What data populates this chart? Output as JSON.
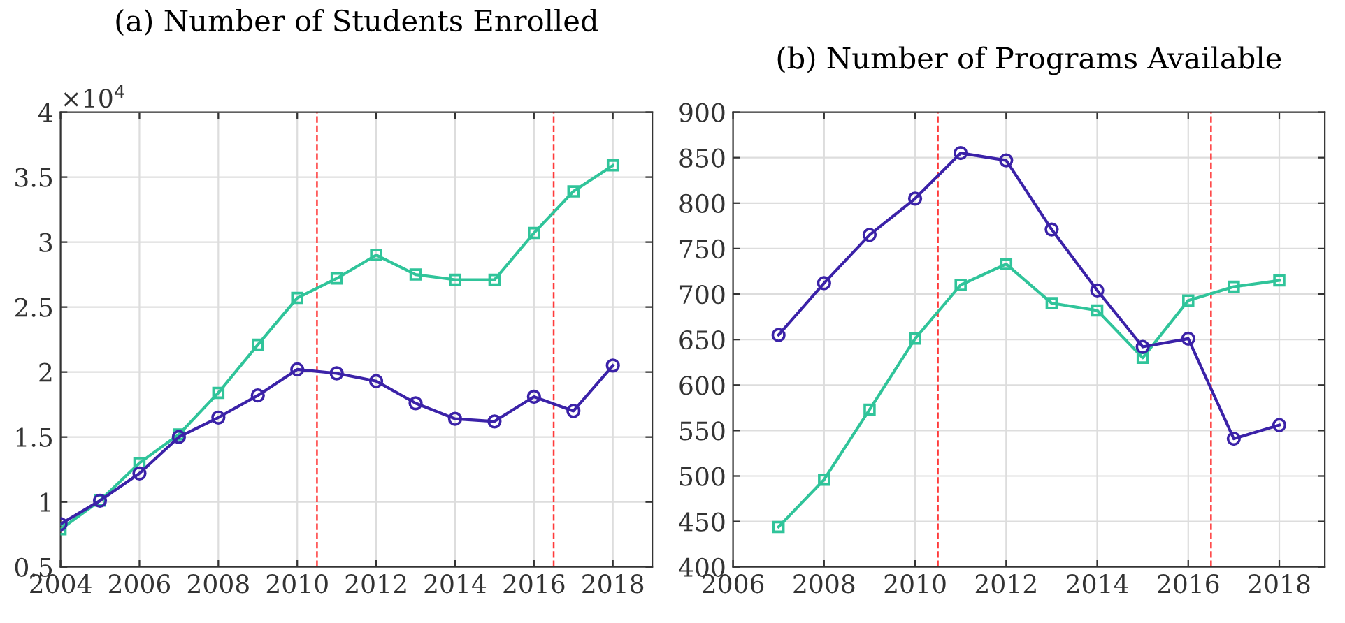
{
  "chart_data": [
    {
      "type": "line",
      "title": "(a) Number of Students Enrolled",
      "annotations": [
        "×10$^{4}$"
      ],
      "x": [
        2004,
        2005,
        2006,
        2007,
        2008,
        2009,
        2010,
        2011,
        2012,
        2013,
        2014,
        2015,
        2016,
        2017,
        2018
      ],
      "series": [
        {
          "color": "#3b22a8",
          "marker": "circle",
          "values": [
            0.83,
            1.01,
            1.22,
            1.5,
            1.65,
            1.82,
            2.02,
            1.99,
            1.93,
            1.76,
            1.64,
            1.62,
            1.81,
            1.7,
            2.05
          ]
        },
        {
          "color": "#30c49a",
          "marker": "square",
          "values": [
            0.79,
            1.01,
            1.3,
            1.52,
            1.84,
            2.21,
            2.57,
            2.72,
            2.9,
            2.75,
            2.71,
            2.71,
            3.07,
            3.39,
            3.59
          ]
        }
      ],
      "xlim": [
        2004,
        2019
      ],
      "xticks": [
        2004,
        2006,
        2008,
        2010,
        2012,
        2014,
        2016,
        2018
      ],
      "ylim": [
        0.5,
        4
      ],
      "yticks": [
        0.5,
        1,
        1.5,
        2,
        2.5,
        3,
        3.5,
        4
      ],
      "ref_lines": [
        {
          "axis": "x",
          "value": 2010.5,
          "color": "#ff3b3b",
          "line_style": "dashed"
        },
        {
          "axis": "x",
          "value": 2016.5,
          "color": "#ff3b3b",
          "line_style": "dashed"
        }
      ],
      "grid": true,
      "legend": false
    },
    {
      "type": "line",
      "title": "(b) Number of Programs Available",
      "x": [
        2007,
        2008,
        2009,
        2010,
        2011,
        2012,
        2013,
        2014,
        2015,
        2016,
        2017,
        2018
      ],
      "series": [
        {
          "color": "#3b22a8",
          "marker": "circle",
          "values": [
            655,
            712,
            765,
            805,
            855,
            847,
            771,
            704,
            642,
            651,
            541,
            556
          ]
        },
        {
          "color": "#30c49a",
          "marker": "square",
          "values": [
            444,
            496,
            573,
            651,
            710,
            733,
            690,
            682,
            630,
            693,
            708,
            715
          ]
        }
      ],
      "xlim": [
        2006,
        2019
      ],
      "xticks": [
        2006,
        2008,
        2010,
        2012,
        2014,
        2016,
        2018
      ],
      "ylim": [
        400,
        900
      ],
      "yticks": [
        400,
        450,
        500,
        550,
        600,
        650,
        700,
        750,
        800,
        850,
        900
      ],
      "ref_lines": [
        {
          "axis": "x",
          "value": 2010.5,
          "color": "#ff3b3b",
          "line_style": "dashed"
        },
        {
          "axis": "x",
          "value": 2016.5,
          "color": "#ff3b3b",
          "line_style": "dashed"
        }
      ],
      "grid": true,
      "legend": false
    }
  ]
}
